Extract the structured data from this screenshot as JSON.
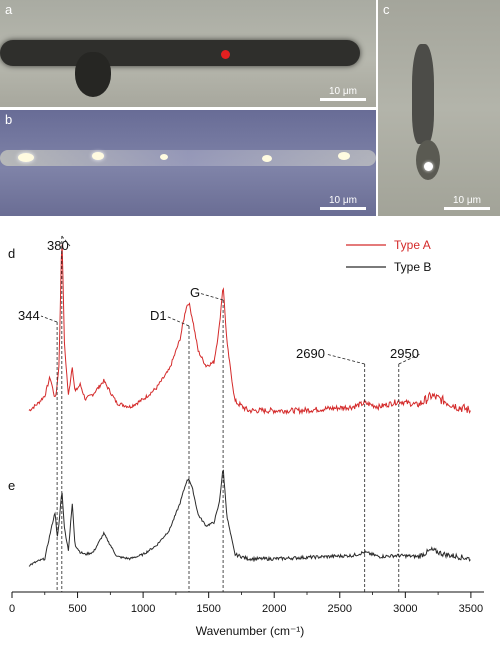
{
  "panels": {
    "a": {
      "label": "a",
      "scale": "10 μm"
    },
    "b": {
      "label": "b",
      "scale": "10 μm"
    },
    "c": {
      "label": "c",
      "scale": "10 μm"
    }
  },
  "chart_data": {
    "type": "line",
    "xlabel": "Wavenumber (cm⁻¹)",
    "xlim": [
      0,
      3600
    ],
    "x_ticks": [
      0,
      500,
      1000,
      1500,
      2000,
      2500,
      3000,
      3500
    ],
    "legend": {
      "placement": "top-right",
      "entries": [
        "Type A",
        "Type B"
      ]
    },
    "panel_labels": [
      "d",
      "e"
    ],
    "series": [
      {
        "name": "Type A",
        "color": "#d42a2a",
        "x": [
          130,
          200,
          250,
          290,
          330,
          344,
          360,
          380,
          400,
          430,
          460,
          480,
          520,
          560,
          620,
          700,
          800,
          900,
          1000,
          1100,
          1200,
          1280,
          1330,
          1350,
          1380,
          1420,
          1480,
          1540,
          1580,
          1610,
          1640,
          1700,
          1800,
          2000,
          2200,
          2400,
          2600,
          2690,
          2800,
          2950,
          3100,
          3200,
          3300,
          3400,
          3500
        ],
        "y": [
          0.04,
          0.08,
          0.12,
          0.22,
          0.1,
          0.18,
          0.3,
          1.0,
          0.4,
          0.12,
          0.28,
          0.14,
          0.18,
          0.1,
          0.13,
          0.2,
          0.08,
          0.06,
          0.1,
          0.16,
          0.26,
          0.42,
          0.6,
          0.62,
          0.52,
          0.36,
          0.28,
          0.3,
          0.48,
          0.72,
          0.4,
          0.09,
          0.04,
          0.04,
          0.04,
          0.05,
          0.06,
          0.08,
          0.06,
          0.09,
          0.07,
          0.12,
          0.09,
          0.06,
          0.04
        ]
      },
      {
        "name": "Type B",
        "color": "#2b2b2b",
        "x": [
          130,
          200,
          250,
          300,
          330,
          344,
          360,
          380,
          400,
          430,
          460,
          480,
          520,
          560,
          620,
          700,
          800,
          900,
          1000,
          1100,
          1200,
          1280,
          1330,
          1350,
          1380,
          1420,
          1480,
          1540,
          1580,
          1610,
          1640,
          1700,
          1800,
          2000,
          2200,
          2400,
          2600,
          2690,
          2800,
          2950,
          3100,
          3200,
          3300,
          3400,
          3500
        ],
        "y": [
          0.06,
          0.1,
          0.12,
          0.4,
          0.55,
          0.3,
          0.45,
          0.75,
          0.4,
          0.2,
          0.62,
          0.25,
          0.18,
          0.16,
          0.18,
          0.35,
          0.14,
          0.12,
          0.16,
          0.24,
          0.38,
          0.62,
          0.82,
          0.85,
          0.74,
          0.52,
          0.42,
          0.45,
          0.62,
          0.95,
          0.5,
          0.16,
          0.12,
          0.12,
          0.13,
          0.14,
          0.15,
          0.18,
          0.14,
          0.15,
          0.14,
          0.2,
          0.16,
          0.14,
          0.12
        ]
      }
    ],
    "annotations": [
      {
        "text": "380",
        "x": 380
      },
      {
        "text": "344",
        "x": 344
      },
      {
        "text": "D1",
        "x": 1350
      },
      {
        "text": "G",
        "x": 1610
      },
      {
        "text": "2690",
        "x": 2690
      },
      {
        "text": "2950",
        "x": 2950
      }
    ]
  }
}
